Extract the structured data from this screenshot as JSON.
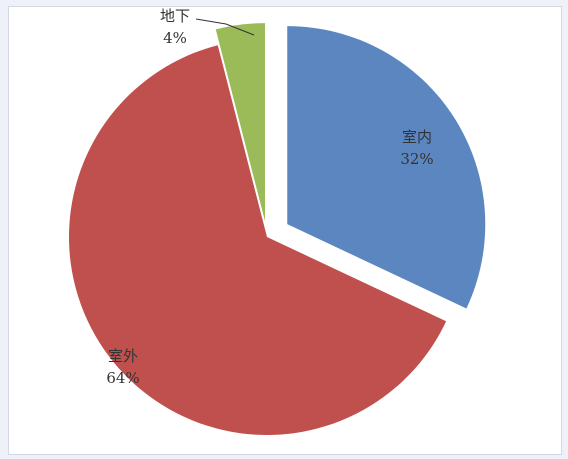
{
  "chart_data": {
    "type": "pie",
    "title": "",
    "exploded": true,
    "slices": [
      {
        "label": "室内",
        "value": 32,
        "pct_label": "32%",
        "color": "#5b86c0"
      },
      {
        "label": "室外",
        "value": 64,
        "pct_label": "64%",
        "color": "#c0504d"
      },
      {
        "label": "地下",
        "value": 4,
        "pct_label": "4%",
        "color": "#9bbb59"
      }
    ],
    "legend": "none",
    "data_labels": "category and percentage"
  }
}
